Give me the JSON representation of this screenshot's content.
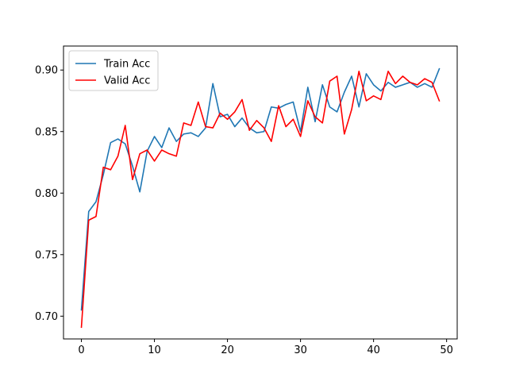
{
  "chart_data": {
    "type": "line",
    "title": "",
    "xlabel": "",
    "ylabel": "",
    "xlim": [
      -2.45,
      51.45
    ],
    "ylim": [
      0.6815,
      0.9195
    ],
    "xticks": [
      0,
      10,
      20,
      30,
      40,
      50
    ],
    "xtick_labels": [
      "0",
      "10",
      "20",
      "30",
      "40",
      "50"
    ],
    "yticks": [
      0.7,
      0.75,
      0.8,
      0.85,
      0.9
    ],
    "ytick_labels": [
      "0.70",
      "0.75",
      "0.80",
      "0.85",
      "0.90"
    ],
    "grid": false,
    "legend": {
      "placement": "top-left"
    },
    "x": [
      0,
      1,
      2,
      3,
      4,
      5,
      6,
      7,
      8,
      9,
      10,
      11,
      12,
      13,
      14,
      15,
      16,
      17,
      18,
      19,
      20,
      21,
      22,
      23,
      24,
      25,
      26,
      27,
      28,
      29,
      30,
      31,
      32,
      33,
      34,
      35,
      36,
      37,
      38,
      39,
      40,
      41,
      42,
      43,
      44,
      45,
      46,
      47,
      48,
      49
    ],
    "series": [
      {
        "name": "Train Acc",
        "color": "#1f77b4",
        "values": [
          0.705,
          0.785,
          0.793,
          0.815,
          0.841,
          0.844,
          0.84,
          0.822,
          0.801,
          0.834,
          0.846,
          0.837,
          0.853,
          0.842,
          0.848,
          0.849,
          0.846,
          0.853,
          0.889,
          0.862,
          0.864,
          0.854,
          0.861,
          0.853,
          0.849,
          0.85,
          0.87,
          0.869,
          0.872,
          0.874,
          0.85,
          0.886,
          0.858,
          0.888,
          0.87,
          0.866,
          0.882,
          0.895,
          0.87,
          0.897,
          0.888,
          0.883,
          0.89,
          0.886,
          0.888,
          0.89,
          0.886,
          0.889,
          0.886,
          0.901
        ]
      },
      {
        "name": "Valid Acc",
        "color": "#ff0000",
        "values": [
          0.691,
          0.778,
          0.781,
          0.821,
          0.819,
          0.83,
          0.855,
          0.811,
          0.832,
          0.835,
          0.826,
          0.835,
          0.832,
          0.83,
          0.857,
          0.855,
          0.874,
          0.854,
          0.853,
          0.865,
          0.86,
          0.866,
          0.876,
          0.851,
          0.859,
          0.853,
          0.842,
          0.871,
          0.854,
          0.86,
          0.846,
          0.875,
          0.862,
          0.857,
          0.891,
          0.895,
          0.848,
          0.868,
          0.899,
          0.875,
          0.879,
          0.876,
          0.899,
          0.889,
          0.895,
          0.89,
          0.888,
          0.893,
          0.89,
          0.875
        ]
      }
    ]
  }
}
